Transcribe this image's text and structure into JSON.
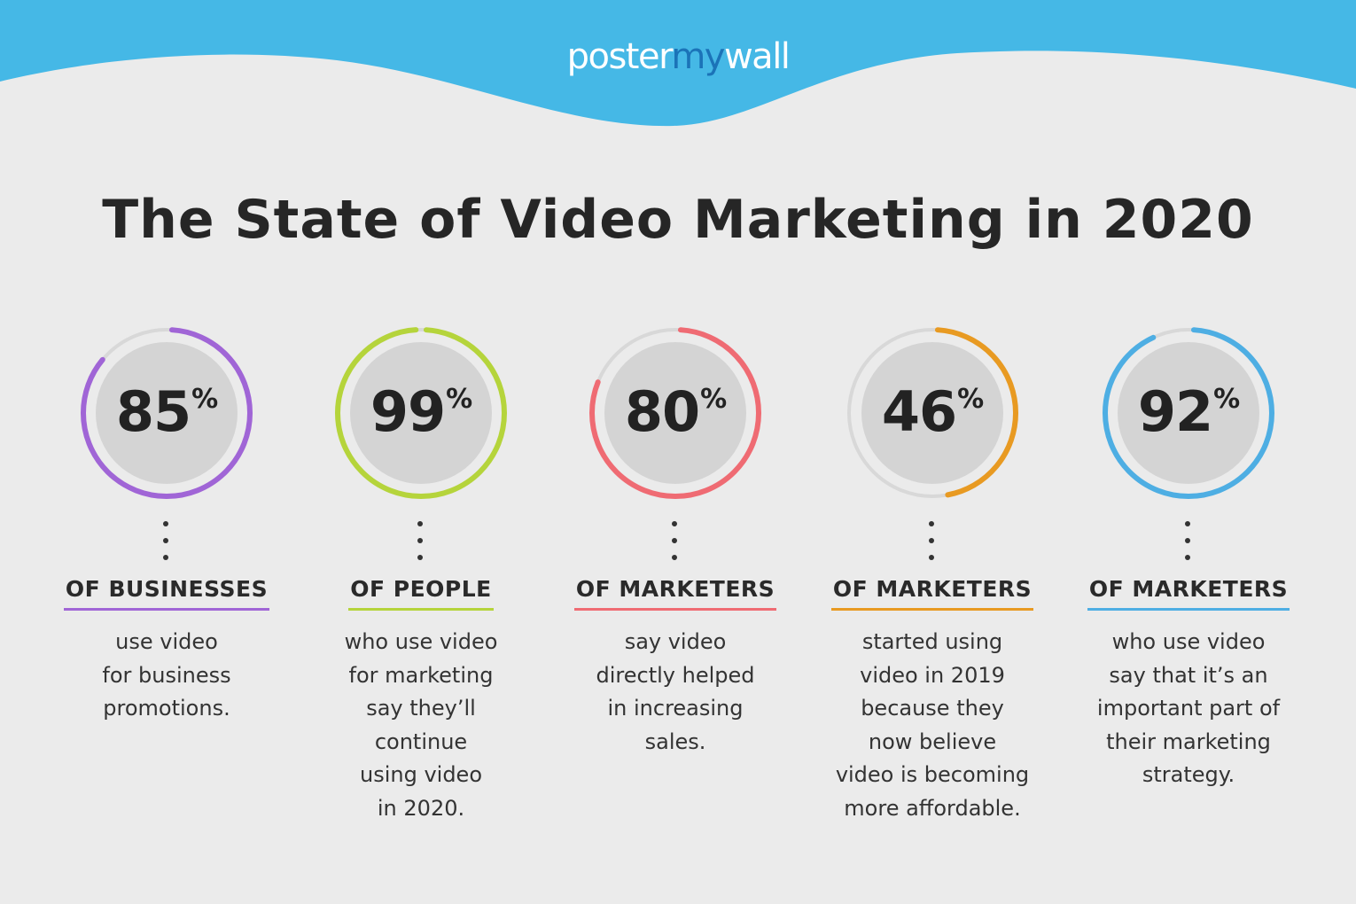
{
  "brand": {
    "logo_part1": "poster",
    "logo_part2": "my",
    "logo_part3": "wall",
    "header_color": "#45b8e6"
  },
  "title": "The State of Video Marketing in 2020",
  "chart_data": {
    "type": "donut",
    "title": "The State of Video Marketing in 2020",
    "items": [
      {
        "value": 85,
        "heading": "OF BUSINESSES",
        "description": "use video\nfor business\npromotions.",
        "color": "#a065d6"
      },
      {
        "value": 99,
        "heading": "OF PEOPLE",
        "description": "who use video\nfor marketing\nsay they’ll\ncontinue\nusing video\nin 2020.",
        "color": "#b5d43b"
      },
      {
        "value": 80,
        "heading": "OF MARKETERS",
        "description": "say video\ndirectly helped\nin increasing\nsales.",
        "color": "#ef6b73"
      },
      {
        "value": 46,
        "heading": "OF MARKETERS",
        "description": "started using\nvideo in 2019\nbecause they\nnow believe\nvideo is becoming\nmore affordable.",
        "color": "#e89a22"
      },
      {
        "value": 92,
        "heading": "OF MARKETERS",
        "description": "who use video\nsay that it’s an\nimportant part of\ntheir marketing\nstrategy.",
        "color": "#4eaee3"
      }
    ]
  }
}
